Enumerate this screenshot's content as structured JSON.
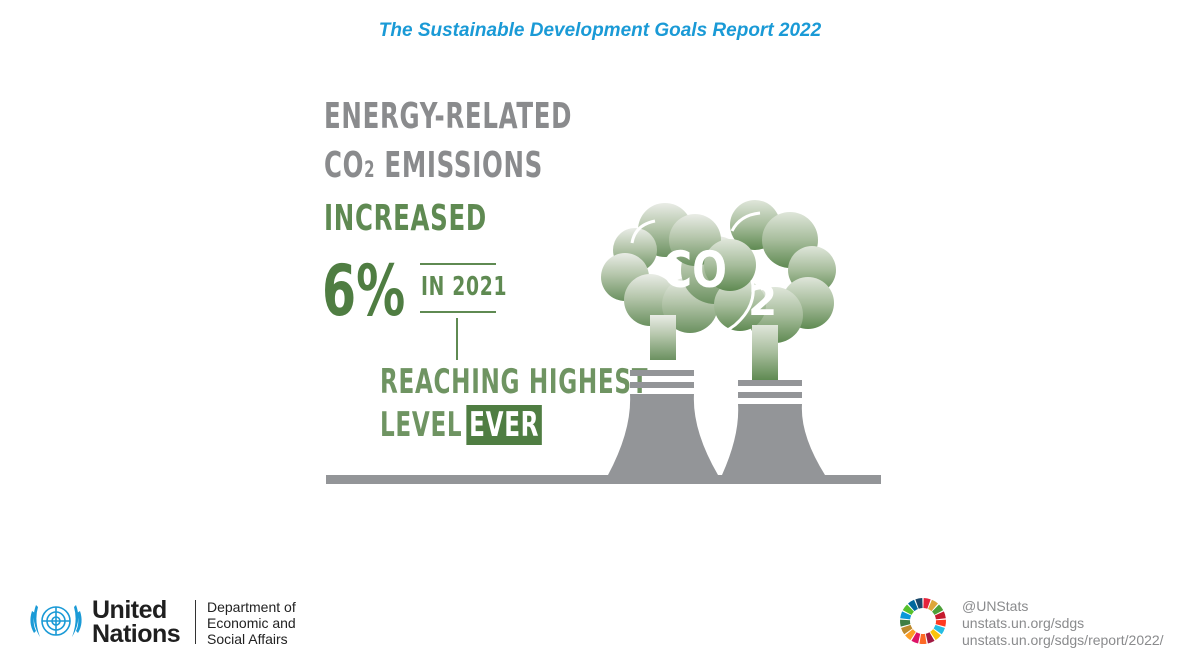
{
  "header": {
    "title": "The Sustainable Development Goals Report 2022"
  },
  "infographic": {
    "line1": "ENERGY-RELATED",
    "line2_prefix": "CO",
    "line2_sub": "2",
    "line2_suffix": " EMISSIONS",
    "line3": "INCREASED",
    "percent": "6%",
    "year_label": "IN 2021",
    "reach_line1": "REACHING HIGHEST",
    "reach_line2_prefix": "LEVEL",
    "reach_line2_highlight": "EVER",
    "cloud_label_main": "CO",
    "cloud_label_sub": "2"
  },
  "footer": {
    "org_line1": "United",
    "org_line2": "Nations",
    "dept_line1": "Department of",
    "dept_line2": "Economic and",
    "dept_line3": "Social Affairs",
    "link1": "@UNStats",
    "link2": "unstats.un.org/sdgs",
    "link3": "unstats.un.org/sdgs/report/2022/"
  },
  "colors": {
    "title_blue": "#1a9ad6",
    "gray_text": "#8a8b8d",
    "green_text": "#5f8a52",
    "dark_green": "#4f7d42",
    "tower_gray": "#939598"
  }
}
